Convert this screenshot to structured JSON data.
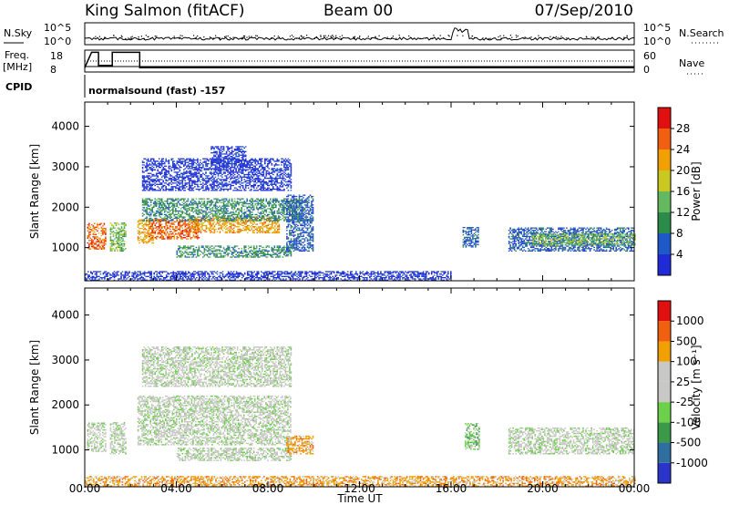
{
  "header": {
    "station": "King Salmon (fitACF)",
    "beam": "Beam 00",
    "date": "07/Sep/2010"
  },
  "top_panels": {
    "nsky_label": "N.Sky",
    "nsky_ticks": [
      "10^5",
      "10^0"
    ],
    "nsearch_label": "N.Search",
    "nsearch_ticks": [
      "10^5",
      "10^0"
    ],
    "freq_label_line1": "Freq.",
    "freq_label_line2": "[MHz]",
    "freq_ticks": [
      "18",
      "8"
    ],
    "nave_label": "Nave",
    "nave_ticks": [
      "60",
      "0"
    ],
    "cpid_label": "CPID",
    "cpid_value": "normalsound (fast) -157"
  },
  "chart_data": [
    {
      "type": "heatmap",
      "name": "power",
      "xlabel": "Time UT",
      "ylabel": "Slant Range [km]",
      "x_ticks": [
        "00:00",
        "04:00",
        "08:00",
        "12:00",
        "16:00",
        "20:00",
        "00:00"
      ],
      "x_range_hours": [
        0,
        24
      ],
      "y_ticks": [
        1000,
        2000,
        3000,
        4000
      ],
      "ylim": [
        180,
        4600
      ],
      "colorbar": {
        "label": "Power [dB]",
        "ticks": [
          "4",
          "8",
          "12",
          "16",
          "20",
          "24",
          "28"
        ],
        "colors": [
          "#1e2bd6",
          "#1f59c8",
          "#2c8a4a",
          "#64b860",
          "#c8c820",
          "#f0a000",
          "#f06010",
          "#e01010"
        ]
      },
      "regions": [
        {
          "t0": 0.1,
          "t1": 0.9,
          "r0": 950,
          "r1": 1600,
          "level": 6
        },
        {
          "t0": 1.1,
          "t1": 1.8,
          "r0": 900,
          "r1": 1600,
          "level": 3
        },
        {
          "t0": 2.3,
          "t1": 3.0,
          "r0": 1100,
          "r1": 1700,
          "level": 5
        },
        {
          "t0": 2.8,
          "t1": 5.0,
          "r0": 1200,
          "r1": 1700,
          "level": 6
        },
        {
          "t0": 4.5,
          "t1": 8.5,
          "r0": 1350,
          "r1": 1750,
          "level": 5
        },
        {
          "t0": 2.5,
          "t1": 9.5,
          "r0": 1650,
          "r1": 2200,
          "level": 2
        },
        {
          "t0": 4.0,
          "t1": 9.0,
          "r0": 750,
          "r1": 1050,
          "level": 2
        },
        {
          "t0": 2.5,
          "t1": 9.0,
          "r0": 2400,
          "r1": 3200,
          "level": 0
        },
        {
          "t0": 5.5,
          "t1": 7.0,
          "r0": 3000,
          "r1": 3500,
          "level": 0
        },
        {
          "t0": 8.8,
          "t1": 10.0,
          "r0": 900,
          "r1": 2300,
          "level": 1
        },
        {
          "t0": 16.5,
          "t1": 17.2,
          "r0": 1000,
          "r1": 1500,
          "level": 1
        },
        {
          "t0": 18.5,
          "t1": 24.0,
          "r0": 900,
          "r1": 1500,
          "level": 1
        },
        {
          "t0": 19.5,
          "t1": 24.0,
          "r0": 1050,
          "r1": 1350,
          "level": 3
        },
        {
          "t0": 0.0,
          "t1": 16.0,
          "r0": 180,
          "r1": 400,
          "level": 0
        }
      ]
    },
    {
      "type": "heatmap",
      "name": "velocity",
      "xlabel": "Time UT",
      "ylabel": "Slant Range [km]",
      "x_ticks": [
        "00:00",
        "04:00",
        "08:00",
        "12:00",
        "16:00",
        "20:00",
        "00:00"
      ],
      "x_range_hours": [
        0,
        24
      ],
      "y_ticks": [
        1000,
        2000,
        3000,
        4000
      ],
      "ylim": [
        180,
        4600
      ],
      "colorbar": {
        "label": "Velocity [m s⁻¹]",
        "ticks": [
          "1000",
          "500",
          "100",
          "25",
          "-25",
          "-100",
          "-500",
          "-1000"
        ],
        "colors": [
          "#2b34c8",
          "#2e6fa0",
          "#3a9a4a",
          "#6cd04a",
          "#c8c8c4",
          "#c8c8c4",
          "#f0a000",
          "#f06010",
          "#e01010"
        ]
      },
      "regions": [
        {
          "t0": 0.1,
          "t1": 0.9,
          "r0": 950,
          "r1": 1600,
          "level": 4
        },
        {
          "t0": 1.1,
          "t1": 1.8,
          "r0": 900,
          "r1": 1600,
          "level": 4
        },
        {
          "t0": 2.3,
          "t1": 9.0,
          "r0": 1100,
          "r1": 2200,
          "level": 4
        },
        {
          "t0": 4.0,
          "t1": 9.0,
          "r0": 750,
          "r1": 1050,
          "level": 4
        },
        {
          "t0": 2.5,
          "t1": 9.0,
          "r0": 2400,
          "r1": 3300,
          "level": 4
        },
        {
          "t0": 8.8,
          "t1": 10.0,
          "r0": 900,
          "r1": 1300,
          "level": 6
        },
        {
          "t0": 16.6,
          "t1": 17.2,
          "r0": 1000,
          "r1": 1600,
          "level": 3
        },
        {
          "t0": 18.5,
          "t1": 24.0,
          "r0": 900,
          "r1": 1500,
          "level": 4
        },
        {
          "t0": 0.0,
          "t1": 24.0,
          "r0": 180,
          "r1": 420,
          "level": 6
        }
      ]
    }
  ]
}
